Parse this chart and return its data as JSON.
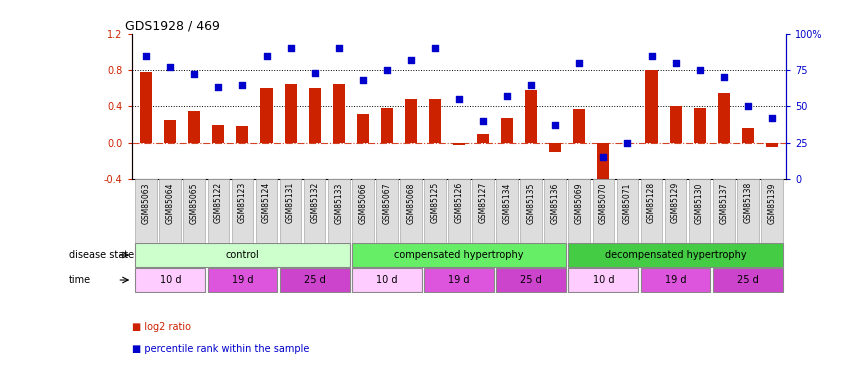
{
  "title": "GDS1928 / 469",
  "samples": [
    "GSM85063",
    "GSM85064",
    "GSM85065",
    "GSM85122",
    "GSM85123",
    "GSM85124",
    "GSM85131",
    "GSM85132",
    "GSM85133",
    "GSM85066",
    "GSM85067",
    "GSM85068",
    "GSM85125",
    "GSM85126",
    "GSM85127",
    "GSM85134",
    "GSM85135",
    "GSM85136",
    "GSM85069",
    "GSM85070",
    "GSM85071",
    "GSM85128",
    "GSM85129",
    "GSM85130",
    "GSM85137",
    "GSM85138",
    "GSM85139"
  ],
  "log2_ratio": [
    0.78,
    0.25,
    0.35,
    0.2,
    0.18,
    0.6,
    0.65,
    0.6,
    0.65,
    0.32,
    0.38,
    0.48,
    0.48,
    -0.03,
    0.1,
    0.27,
    0.58,
    -0.1,
    0.37,
    -0.5,
    0.0,
    0.8,
    0.4,
    0.38,
    0.55,
    0.16,
    -0.05
  ],
  "percentile": [
    85,
    77,
    72,
    63,
    65,
    85,
    90,
    73,
    90,
    68,
    75,
    82,
    90,
    55,
    40,
    57,
    65,
    37,
    80,
    15,
    25,
    85,
    80,
    75,
    70,
    50,
    42
  ],
  "disease_state_groups": [
    {
      "label": "control",
      "start": 0,
      "end": 8,
      "color": "#ccffcc"
    },
    {
      "label": "compensated hypertrophy",
      "start": 9,
      "end": 17,
      "color": "#66ee66"
    },
    {
      "label": "decompensated hypertrophy",
      "start": 18,
      "end": 26,
      "color": "#44cc44"
    }
  ],
  "time_groups": [
    {
      "label": "10 d",
      "start": 0,
      "end": 2,
      "color": "#ffccff"
    },
    {
      "label": "19 d",
      "start": 3,
      "end": 5,
      "color": "#dd55dd"
    },
    {
      "label": "25 d",
      "start": 6,
      "end": 8,
      "color": "#cc44cc"
    },
    {
      "label": "10 d",
      "start": 9,
      "end": 11,
      "color": "#ffccff"
    },
    {
      "label": "19 d",
      "start": 12,
      "end": 14,
      "color": "#dd55dd"
    },
    {
      "label": "25 d",
      "start": 15,
      "end": 17,
      "color": "#cc44cc"
    },
    {
      "label": "10 d",
      "start": 18,
      "end": 20,
      "color": "#ffccff"
    },
    {
      "label": "19 d",
      "start": 21,
      "end": 23,
      "color": "#dd55dd"
    },
    {
      "label": "25 d",
      "start": 24,
      "end": 26,
      "color": "#cc44cc"
    }
  ],
  "bar_color": "#cc2200",
  "dot_color": "#0000cc",
  "ylim_left": [
    -0.4,
    1.2
  ],
  "ylim_right": [
    0,
    100
  ],
  "yticks_left": [
    -0.4,
    0.0,
    0.4,
    0.8,
    1.2
  ],
  "yticks_right": [
    0,
    25,
    50,
    75,
    100
  ],
  "hline_values": [
    0.4,
    0.8
  ],
  "zero_line": 0.0,
  "disease_state_label": "disease state",
  "time_label": "time",
  "legend_items": [
    {
      "label": "log2 ratio",
      "color": "#cc2200"
    },
    {
      "label": "percentile rank within the sample",
      "color": "#0000cc"
    }
  ]
}
